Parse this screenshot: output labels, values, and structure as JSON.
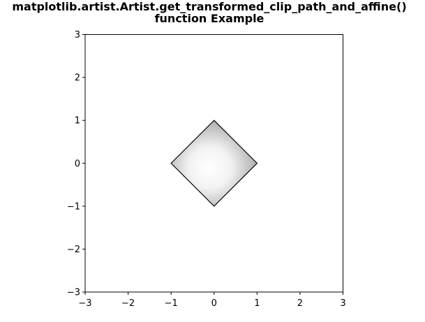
{
  "chart_data": {
    "type": "area",
    "title": "matplotlib.artist.Artist.get_transformed_clip_path_and_affine()",
    "subtitle": "function Example",
    "xlabel": "",
    "ylabel": "",
    "xlim": [
      -3,
      3
    ],
    "ylim": [
      -3,
      3
    ],
    "xticks": [
      "−3",
      "−2",
      "−1",
      "0",
      "1",
      "2",
      "3"
    ],
    "yticks": [
      "−3",
      "−2",
      "−1",
      "0",
      "1",
      "2",
      "3"
    ],
    "grid": false,
    "shape": {
      "kind": "diamond clip path",
      "vertices": [
        [
          0,
          1
        ],
        [
          1,
          0
        ],
        [
          0,
          -1
        ],
        [
          -1,
          0
        ]
      ],
      "fill": "radial gradient",
      "center_color": "#ffffff",
      "edge_color": "#8c8c8c",
      "outline_color": "#000000"
    }
  }
}
